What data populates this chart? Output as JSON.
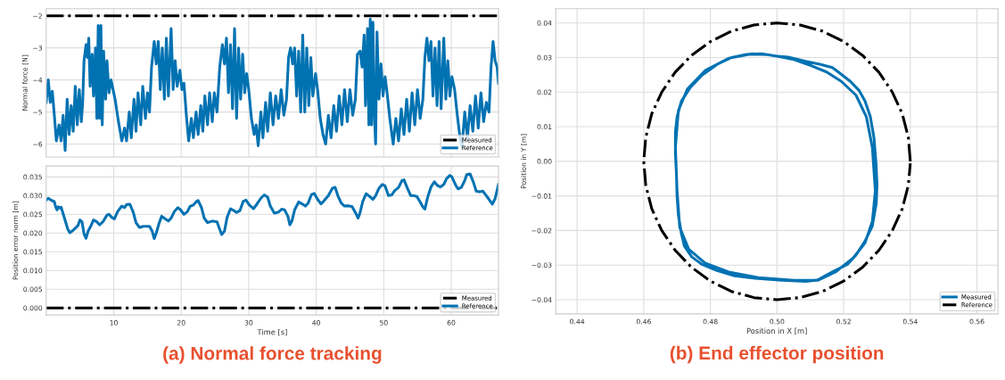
{
  "chart_data": [
    {
      "type": "line",
      "ylabel": "Normal force [N]",
      "xlim": [
        0,
        67
      ],
      "xticks": [
        10,
        20,
        30,
        40,
        50,
        60
      ],
      "ylim": [
        -6.4,
        -1.78
      ],
      "yticks": [
        {
          "value": -6,
          "label": "−6"
        },
        {
          "value": -5,
          "label": "−5"
        },
        {
          "value": -4,
          "label": "−4"
        },
        {
          "value": -3,
          "label": "−3"
        },
        {
          "value": -2,
          "label": "−2"
        }
      ],
      "tick_labels": "y",
      "grid": true,
      "legend": "bottom right",
      "series": [
        {
          "name": "Measured",
          "color": "#000000",
          "line_style": "dashdot",
          "x": [
            0,
            67
          ],
          "values": [
            -2,
            -2
          ]
        },
        {
          "name": "Reference",
          "color": "#0072b2",
          "line_style": "solid",
          "x": [
            0,
            0.3,
            0.6,
            0.9,
            1.2,
            1.5,
            1.9,
            2.2,
            2.5,
            2.8,
            3.1,
            3.4,
            3.7,
            4.0,
            4.3,
            4.6,
            4.9,
            5.2,
            5.4,
            5.6,
            5.9,
            6.1,
            6.3,
            6.5,
            6.8,
            7.0,
            7.3,
            7.5,
            7.7,
            7.9,
            8.1,
            8.3,
            8.5,
            8.8,
            9.0,
            9.3,
            9.6,
            9.9,
            10.2,
            10.7,
            11.2,
            11.6,
            11.9,
            12.3,
            12.6,
            13.0,
            13.3,
            13.6,
            14.0,
            14.3,
            14.7,
            15.0,
            15.3,
            15.6,
            16.0,
            16.3,
            16.6,
            16.9,
            17.2,
            17.5,
            17.8,
            18.1,
            18.5,
            18.8,
            19.1,
            19.4,
            19.8,
            20.1,
            20.4,
            20.8,
            21.1,
            21.5,
            21.8,
            22.2,
            22.5,
            22.9,
            23.2,
            23.5,
            23.9,
            24.2,
            24.6,
            24.9,
            25.3,
            25.7,
            26.1,
            26.4,
            26.7,
            27.0,
            27.3,
            27.6,
            27.9,
            28.2,
            28.5,
            28.8,
            29.1,
            29.4,
            29.7,
            30.0,
            30.4,
            30.8,
            31.1,
            31.4,
            31.8,
            32.1,
            32.5,
            32.8,
            33.2,
            33.6,
            34.0,
            34.4,
            34.8,
            35.2,
            35.6,
            35.9,
            36.2,
            36.5,
            36.8,
            37.1,
            37.4,
            37.7,
            38.0,
            38.3,
            38.6,
            38.9,
            39.2,
            39.5,
            39.9,
            40.2,
            40.6,
            41.0,
            41.4,
            41.8,
            42.2,
            42.6,
            43.0,
            43.4,
            43.8,
            44.2,
            44.6,
            45.0,
            45.4,
            45.8,
            46.1,
            46.5,
            46.8,
            47.1,
            47.3,
            47.6,
            47.8,
            48.0,
            48.2,
            48.4,
            48.6,
            48.8,
            49.0,
            49.3,
            49.6,
            49.9,
            50.2,
            50.5,
            50.9,
            51.4,
            51.8,
            52.2,
            52.6,
            53.0,
            53.4,
            53.8,
            54.2,
            54.6,
            55.0,
            55.4,
            55.8,
            56.1,
            56.4,
            56.7,
            57.0,
            57.3,
            57.6,
            57.9,
            58.2,
            58.5,
            58.9,
            59.2,
            59.5,
            59.8,
            60.1,
            60.5,
            60.9,
            61.3,
            61.6,
            62.0,
            62.4,
            62.8,
            63.2,
            63.6,
            64.0,
            64.4,
            64.8,
            65.2,
            65.6,
            65.9,
            66.2,
            66.5,
            66.8,
            67.0
          ],
          "values": [
            -4.7,
            -4.0,
            -4.7,
            -4.35,
            -5.1,
            -5.9,
            -5.4,
            -5.9,
            -5.1,
            -6.2,
            -4.6,
            -5.7,
            -4.8,
            -5.6,
            -4.2,
            -5.4,
            -4.3,
            -5.3,
            -4.7,
            -3.4,
            -2.9,
            -3.3,
            -2.7,
            -4.2,
            -3.2,
            -4.5,
            -3.0,
            -5.2,
            -2.3,
            -5.2,
            -2.3,
            -5.4,
            -3.1,
            -4.6,
            -3.4,
            -4.4,
            -4.0,
            -4.3,
            -4.6,
            -5.3,
            -5.9,
            -5.5,
            -5.9,
            -5.0,
            -5.8,
            -4.6,
            -5.6,
            -4.4,
            -5.4,
            -4.2,
            -5.2,
            -4.4,
            -5.0,
            -3.6,
            -2.8,
            -3.5,
            -2.8,
            -4.3,
            -3.0,
            -4.6,
            -2.7,
            -4.5,
            -2.4,
            -4.3,
            -3.4,
            -4.2,
            -3.7,
            -4.3,
            -4.1,
            -5.2,
            -5.9,
            -5.2,
            -5.8,
            -5.0,
            -5.7,
            -4.8,
            -5.6,
            -4.5,
            -5.4,
            -4.4,
            -5.3,
            -4.4,
            -5.0,
            -3.6,
            -2.9,
            -3.5,
            -2.7,
            -4.4,
            -2.9,
            -4.9,
            -2.4,
            -5.2,
            -3.0,
            -4.6,
            -3.2,
            -4.4,
            -3.8,
            -4.3,
            -5.2,
            -5.7,
            -5.4,
            -6.05,
            -5.0,
            -5.8,
            -4.7,
            -5.6,
            -4.4,
            -5.4,
            -4.5,
            -5.2,
            -4.3,
            -5.1,
            -4.6,
            -3.3,
            -3.0,
            -3.5,
            -3.0,
            -4.5,
            -3.1,
            -5.0,
            -2.6,
            -5.0,
            -3.0,
            -4.8,
            -3.3,
            -4.5,
            -3.8,
            -4.3,
            -5.2,
            -5.7,
            -6.0,
            -5.1,
            -5.8,
            -4.8,
            -5.6,
            -4.5,
            -5.4,
            -4.3,
            -5.3,
            -4.3,
            -5.1,
            -4.6,
            -3.2,
            -3.1,
            -3.6,
            -2.6,
            -4.8,
            -2.4,
            -5.4,
            -2.1,
            -5.4,
            -2.2,
            -5.0,
            -6.0,
            -2.5,
            -4.6,
            -3.5,
            -4.5,
            -3.9,
            -4.4,
            -5.2,
            -6.0,
            -5.2,
            -5.9,
            -4.9,
            -5.7,
            -4.6,
            -5.6,
            -4.4,
            -5.4,
            -4.3,
            -5.2,
            -4.6,
            -3.3,
            -2.7,
            -3.4,
            -2.8,
            -4.5,
            -3.0,
            -4.8,
            -2.8,
            -4.9,
            -2.7,
            -4.6,
            -3.4,
            -4.5,
            -3.9,
            -4.3,
            -5.1,
            -5.8,
            -6.1,
            -5.0,
            -5.8,
            -4.8,
            -5.6,
            -4.5,
            -5.5,
            -4.4,
            -5.3,
            -4.7,
            -5.0,
            -3.6,
            -2.8,
            -3.4,
            -3.6,
            -4.1
          ]
        }
      ]
    },
    {
      "type": "line",
      "xlabel": "Time [s]",
      "ylabel": "Position error norm [m]",
      "xlim": [
        0,
        67
      ],
      "xticks": [
        10,
        20,
        30,
        40,
        50,
        60
      ],
      "ylim": [
        -0.0019,
        0.0379
      ],
      "yticks": [
        {
          "value": 0,
          "label": "0.000"
        },
        {
          "value": 0.005,
          "label": "0.005"
        },
        {
          "value": 0.01,
          "label": "0.010"
        },
        {
          "value": 0.015,
          "label": "0.015"
        },
        {
          "value": 0.02,
          "label": "0.020"
        },
        {
          "value": 0.025,
          "label": "0.025"
        },
        {
          "value": 0.03,
          "label": "0.030"
        },
        {
          "value": 0.035,
          "label": "0.035"
        }
      ],
      "grid": true,
      "legend": "bottom right",
      "annotations": [
        "(a) Normal force tracking"
      ],
      "series": [
        {
          "name": "Measured",
          "color": "#000000",
          "line_style": "dashdot",
          "x": [
            0,
            67
          ],
          "values": [
            0,
            0
          ]
        },
        {
          "name": "Reference",
          "color": "#0072b2",
          "line_style": "solid",
          "x": [
            0,
            0.3,
            0.8,
            1.2,
            1.4,
            1.6,
            1.8,
            2.1,
            2.2,
            2.7,
            3.2,
            3.5,
            3.9,
            4.3,
            4.7,
            5.0,
            5.3,
            5.6,
            5.9,
            6.2,
            6.7,
            7.0,
            7.5,
            7.9,
            8.4,
            9.0,
            9.3,
            9.7,
            10.1,
            10.6,
            11.2,
            11.6,
            11.9,
            12.4,
            12.9,
            13.3,
            13.8,
            14.4,
            14.8,
            15.3,
            15.7,
            16.0,
            16.3,
            16.7,
            17.1,
            17.6,
            18.1,
            18.5,
            19.0,
            19.5,
            19.9,
            20.4,
            20.9,
            21.3,
            21.8,
            22.3,
            22.5,
            23.0,
            23.4,
            23.9,
            24.6,
            25.3,
            25.6,
            26.0,
            26.4,
            26.8,
            27.3,
            27.8,
            28.2,
            28.7,
            29.2,
            29.6,
            30.1,
            30.7,
            31.2,
            31.8,
            32.3,
            32.8,
            33.2,
            33.8,
            34.4,
            34.9,
            35.3,
            35.8,
            36.1,
            36.4,
            36.8,
            37.4,
            37.9,
            38.4,
            38.8,
            39.3,
            39.7,
            40.2,
            40.7,
            41.1,
            41.8,
            42.4,
            42.8,
            43.2,
            43.7,
            44.2,
            44.7,
            45.3,
            45.8,
            46.2,
            46.5,
            46.9,
            47.4,
            47.9,
            48.4,
            48.8,
            49.3,
            49.8,
            50.2,
            50.7,
            51.2,
            51.6,
            52.2,
            52.7,
            53.0,
            53.5,
            54.0,
            54.4,
            54.9,
            55.4,
            55.8,
            56.1,
            56.5,
            57.0,
            57.5,
            57.9,
            58.4,
            58.9,
            59.3,
            59.8,
            60.1,
            60.6,
            61.0,
            61.5,
            62.0,
            62.3,
            62.8,
            63.3,
            63.7,
            64.2,
            64.7,
            65.1,
            65.6,
            66.1,
            66.5,
            67.0
          ],
          "values": [
            0.0288,
            0.0293,
            0.0287,
            0.0284,
            0.027,
            0.0262,
            0.027,
            0.0266,
            0.0269,
            0.024,
            0.021,
            0.0201,
            0.0206,
            0.0213,
            0.022,
            0.0235,
            0.023,
            0.0198,
            0.0186,
            0.0205,
            0.0222,
            0.0235,
            0.023,
            0.0222,
            0.023,
            0.0248,
            0.025,
            0.0242,
            0.0238,
            0.0258,
            0.0272,
            0.0268,
            0.0276,
            0.0277,
            0.0255,
            0.0228,
            0.0215,
            0.0218,
            0.0218,
            0.0218,
            0.0205,
            0.0185,
            0.02,
            0.0225,
            0.0245,
            0.0238,
            0.0232,
            0.024,
            0.0258,
            0.0268,
            0.0262,
            0.025,
            0.0257,
            0.0271,
            0.0275,
            0.0285,
            0.0287,
            0.0268,
            0.024,
            0.0228,
            0.0232,
            0.023,
            0.0215,
            0.0196,
            0.0205,
            0.0242,
            0.0265,
            0.026,
            0.0255,
            0.026,
            0.0285,
            0.0288,
            0.0275,
            0.0265,
            0.0277,
            0.0293,
            0.0302,
            0.0296,
            0.0272,
            0.0253,
            0.0256,
            0.0264,
            0.0262,
            0.0245,
            0.0222,
            0.0232,
            0.0262,
            0.0283,
            0.0278,
            0.0272,
            0.028,
            0.0303,
            0.0306,
            0.029,
            0.0278,
            0.0285,
            0.03,
            0.032,
            0.0322,
            0.03,
            0.028,
            0.0272,
            0.0273,
            0.0271,
            0.0255,
            0.024,
            0.0255,
            0.0285,
            0.0305,
            0.0298,
            0.029,
            0.03,
            0.032,
            0.033,
            0.0326,
            0.03,
            0.0302,
            0.0313,
            0.0322,
            0.034,
            0.0342,
            0.032,
            0.03,
            0.03,
            0.0298,
            0.0283,
            0.027,
            0.0264,
            0.0295,
            0.0323,
            0.0337,
            0.0328,
            0.0323,
            0.033,
            0.0345,
            0.0354,
            0.035,
            0.033,
            0.0318,
            0.0322,
            0.034,
            0.0356,
            0.0358,
            0.0335,
            0.0312,
            0.031,
            0.0312,
            0.0302,
            0.029,
            0.0277,
            0.0292,
            0.033
          ]
        }
      ]
    },
    {
      "type": "line",
      "xlabel": "Position in X [m]",
      "ylabel": "Position in Y [m]",
      "xlim": [
        0.4336,
        0.5663
      ],
      "ylim": [
        -0.0441,
        0.0441
      ],
      "xticks": [
        {
          "value": 0.44,
          "label": "0.44"
        },
        {
          "value": 0.46,
          "label": "0.46"
        },
        {
          "value": 0.48,
          "label": "0.48"
        },
        {
          "value": 0.5,
          "label": "0.50"
        },
        {
          "value": 0.52,
          "label": "0.52"
        },
        {
          "value": 0.54,
          "label": "0.54"
        },
        {
          "value": 0.56,
          "label": "0.56"
        }
      ],
      "yticks": [
        {
          "value": -0.04,
          "label": "−0.04"
        },
        {
          "value": -0.03,
          "label": "−0.03"
        },
        {
          "value": -0.02,
          "label": "−0.02"
        },
        {
          "value": -0.01,
          "label": "−0.01"
        },
        {
          "value": 0,
          "label": "0.00"
        },
        {
          "value": 0.01,
          "label": "0.01"
        },
        {
          "value": 0.02,
          "label": "0.02"
        },
        {
          "value": 0.03,
          "label": "0.03"
        },
        {
          "value": 0.04,
          "label": "0.04"
        }
      ],
      "grid": true,
      "legend": "bottom right",
      "annotations": [
        "(b) End effector position"
      ],
      "series": [
        {
          "name": "Measured",
          "color": "#0072b2",
          "line_style": "solid",
          "x": [
            0.5,
            0.4953,
            0.4908,
            0.4864,
            0.482,
            0.4775,
            0.474,
            0.4713,
            0.47,
            0.4695,
            0.4695,
            0.4698,
            0.47,
            0.4704,
            0.4713,
            0.4722,
            0.4744,
            0.4775,
            0.482,
            0.4873,
            0.4935,
            0.5006,
            0.5086,
            0.5122,
            0.5166,
            0.5211,
            0.5237,
            0.5264,
            0.5286,
            0.5298,
            0.53,
            0.5297,
            0.5291,
            0.528,
            0.5264,
            0.5246,
            0.522,
            0.5184,
            0.5166,
            0.5131,
            0.5086,
            0.5033,
            0.5,
            0.5051,
            0.5104,
            0.5149,
            0.5193,
            0.5237,
            0.5268,
            0.5286,
            0.5295,
            0.5286,
            0.5264,
            0.5228,
            0.5175,
            0.5122,
            0.5051,
            0.4944,
            0.4855,
            0.4784,
            0.4735,
            0.4708,
            0.47,
            0.4695,
            0.4704,
            0.4731,
            0.4784,
            0.4855,
            0.4926,
            0.4975
          ],
          "values": [
            0.0304,
            0.0311,
            0.0309,
            0.03,
            0.028,
            0.0249,
            0.0214,
            0.0174,
            0.0129,
            0.0085,
            0.0022,
            -0.0031,
            -0.0102,
            -0.0156,
            -0.0209,
            -0.0245,
            -0.0276,
            -0.0298,
            -0.0316,
            -0.0331,
            -0.0338,
            -0.0343,
            -0.0347,
            -0.0343,
            -0.032,
            -0.0298,
            -0.0271,
            -0.0231,
            -0.0187,
            -0.012,
            -0.0067,
            -0.0004,
            0.0067,
            0.0129,
            0.0174,
            0.0205,
            0.0231,
            0.0258,
            0.0271,
            0.028,
            0.0289,
            0.0301,
            0.0304,
            0.0294,
            0.0276,
            0.0258,
            0.0231,
            0.0191,
            0.0129,
            0.004,
            -0.0085,
            -0.0174,
            -0.0236,
            -0.028,
            -0.032,
            -0.0344,
            -0.0344,
            -0.0336,
            -0.032,
            -0.0294,
            -0.0254,
            -0.0191,
            -0.0085,
            0.004,
            0.0147,
            0.0209,
            0.0262,
            0.0298,
            0.0311,
            0.0308
          ]
        },
        {
          "name": "Reference",
          "color": "#000000",
          "line_style": "dashdot",
          "x": [
            0.54,
            0.5394,
            0.5376,
            0.5346,
            0.5306,
            0.5257,
            0.52,
            0.5137,
            0.5069,
            0.5,
            0.4931,
            0.4863,
            0.48,
            0.4743,
            0.4694,
            0.4654,
            0.4624,
            0.4606,
            0.46,
            0.4606,
            0.4624,
            0.4654,
            0.4694,
            0.4743,
            0.48,
            0.4863,
            0.4931,
            0.5,
            0.5069,
            0.5137,
            0.52,
            0.5257,
            0.5306,
            0.5346,
            0.5376,
            0.5394,
            0.54
          ],
          "values": [
            0,
            0.0069,
            0.0137,
            0.02,
            0.0257,
            0.0306,
            0.0346,
            0.0376,
            0.0394,
            0.04,
            0.0394,
            0.0376,
            0.0346,
            0.0306,
            0.0257,
            0.02,
            0.0137,
            0.0069,
            0,
            -0.0069,
            -0.0137,
            -0.02,
            -0.0257,
            -0.0306,
            -0.0346,
            -0.0376,
            -0.0394,
            -0.04,
            -0.0394,
            -0.0376,
            -0.0346,
            -0.0306,
            -0.0257,
            -0.02,
            -0.0137,
            -0.0069,
            -0.0006
          ]
        }
      ]
    }
  ]
}
